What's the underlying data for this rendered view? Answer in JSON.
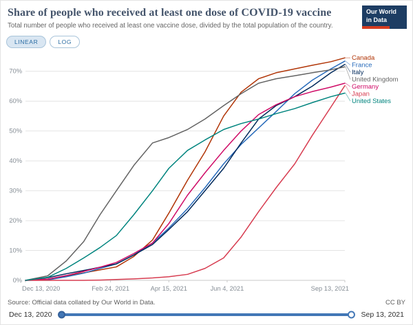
{
  "header": {
    "title": "Share of people who received at least one dose of COVID-19 vaccine",
    "subtitle": "Total number of people who received at least one vaccine dose, divided by the total population of the country.",
    "logo": {
      "line1": "Our World",
      "line2": "in Data"
    }
  },
  "controls": {
    "linear_label": "LINEAR",
    "log_label": "LOG"
  },
  "chart_data": {
    "type": "line",
    "title": "Share of people who received at least one dose of COVID-19 vaccine",
    "x_unit": "days since Dec 13, 2020",
    "x_range": [
      0,
      274
    ],
    "x": [
      0,
      19,
      35,
      50,
      64,
      78,
      93,
      109,
      123,
      139,
      154,
      170,
      185,
      200,
      215,
      231,
      246,
      262,
      274
    ],
    "x_tick_days": [
      0,
      73,
      123,
      173,
      274
    ],
    "x_tick_labels": [
      "Dec 13, 2020",
      "Feb 24, 2021",
      "Apr 15, 2021",
      "Jun 4, 2021",
      "Sep 13, 2021"
    ],
    "ylim": [
      0,
      75
    ],
    "y_ticks": [
      0,
      10,
      20,
      30,
      40,
      50,
      60,
      70
    ],
    "y_tick_suffix": "%",
    "grid": true,
    "legend_position": "right",
    "series": [
      {
        "name": "Canada",
        "color": "#b13507",
        "values": [
          0,
          0.4,
          1.5,
          2.5,
          3.5,
          4.5,
          8,
          13.5,
          22.5,
          33.5,
          43,
          55,
          63,
          67.5,
          69.5,
          70.8,
          72,
          73.2,
          74.5
        ]
      },
      {
        "name": "France",
        "color": "#286bbb",
        "values": [
          0,
          0.1,
          1.2,
          2.4,
          4,
          5.5,
          8.5,
          12.5,
          17.5,
          24,
          31,
          39,
          45.5,
          51,
          56.5,
          62.5,
          67,
          70.8,
          73.4
        ]
      },
      {
        "name": "Italy",
        "color": "#00295b",
        "values": [
          0,
          0.9,
          2.2,
          3.3,
          4.4,
          5.5,
          8.5,
          12,
          17,
          23,
          30,
          37.5,
          46,
          54,
          58.5,
          61.5,
          65,
          69.5,
          72.3
        ]
      },
      {
        "name": "United Kingdom",
        "color": "#636363",
        "values": [
          0,
          1.5,
          6.5,
          13,
          22,
          30,
          38.5,
          46,
          47.8,
          50.5,
          54,
          58.5,
          62.5,
          66,
          67.5,
          68.5,
          69.5,
          70.5,
          71.5
        ]
      },
      {
        "name": "Germany",
        "color": "#cf0a66",
        "values": [
          0,
          0.4,
          1.6,
          3,
          4.4,
          6,
          9,
          12.5,
          19,
          28.5,
          36,
          43.5,
          50,
          55.5,
          58.8,
          61.5,
          63.2,
          64.7,
          66
        ]
      },
      {
        "name": "Japan",
        "color": "#d73c50",
        "values": [
          0,
          0,
          0,
          0,
          0.1,
          0.3,
          0.5,
          0.8,
          1.2,
          2,
          4,
          7.5,
          14.5,
          23,
          31,
          39,
          48.5,
          58,
          65.2
        ]
      },
      {
        "name": "United States",
        "color": "#00847e",
        "values": [
          0,
          1,
          4,
          7.5,
          11,
          15,
          22,
          30,
          37.5,
          43.5,
          47,
          50.5,
          52.5,
          54,
          55.8,
          57.5,
          59.5,
          61.5,
          62.7
        ]
      }
    ]
  },
  "footer": {
    "source": "Source: Official data collated by Our World in Data.",
    "license": "CC BY"
  },
  "timeline": {
    "start": "Dec 13, 2020",
    "end": "Sep 13, 2021"
  },
  "colors": {
    "accent_blue": "#4277b6",
    "logo_navy": "#1d3d63",
    "logo_red": "#d63b1f"
  }
}
